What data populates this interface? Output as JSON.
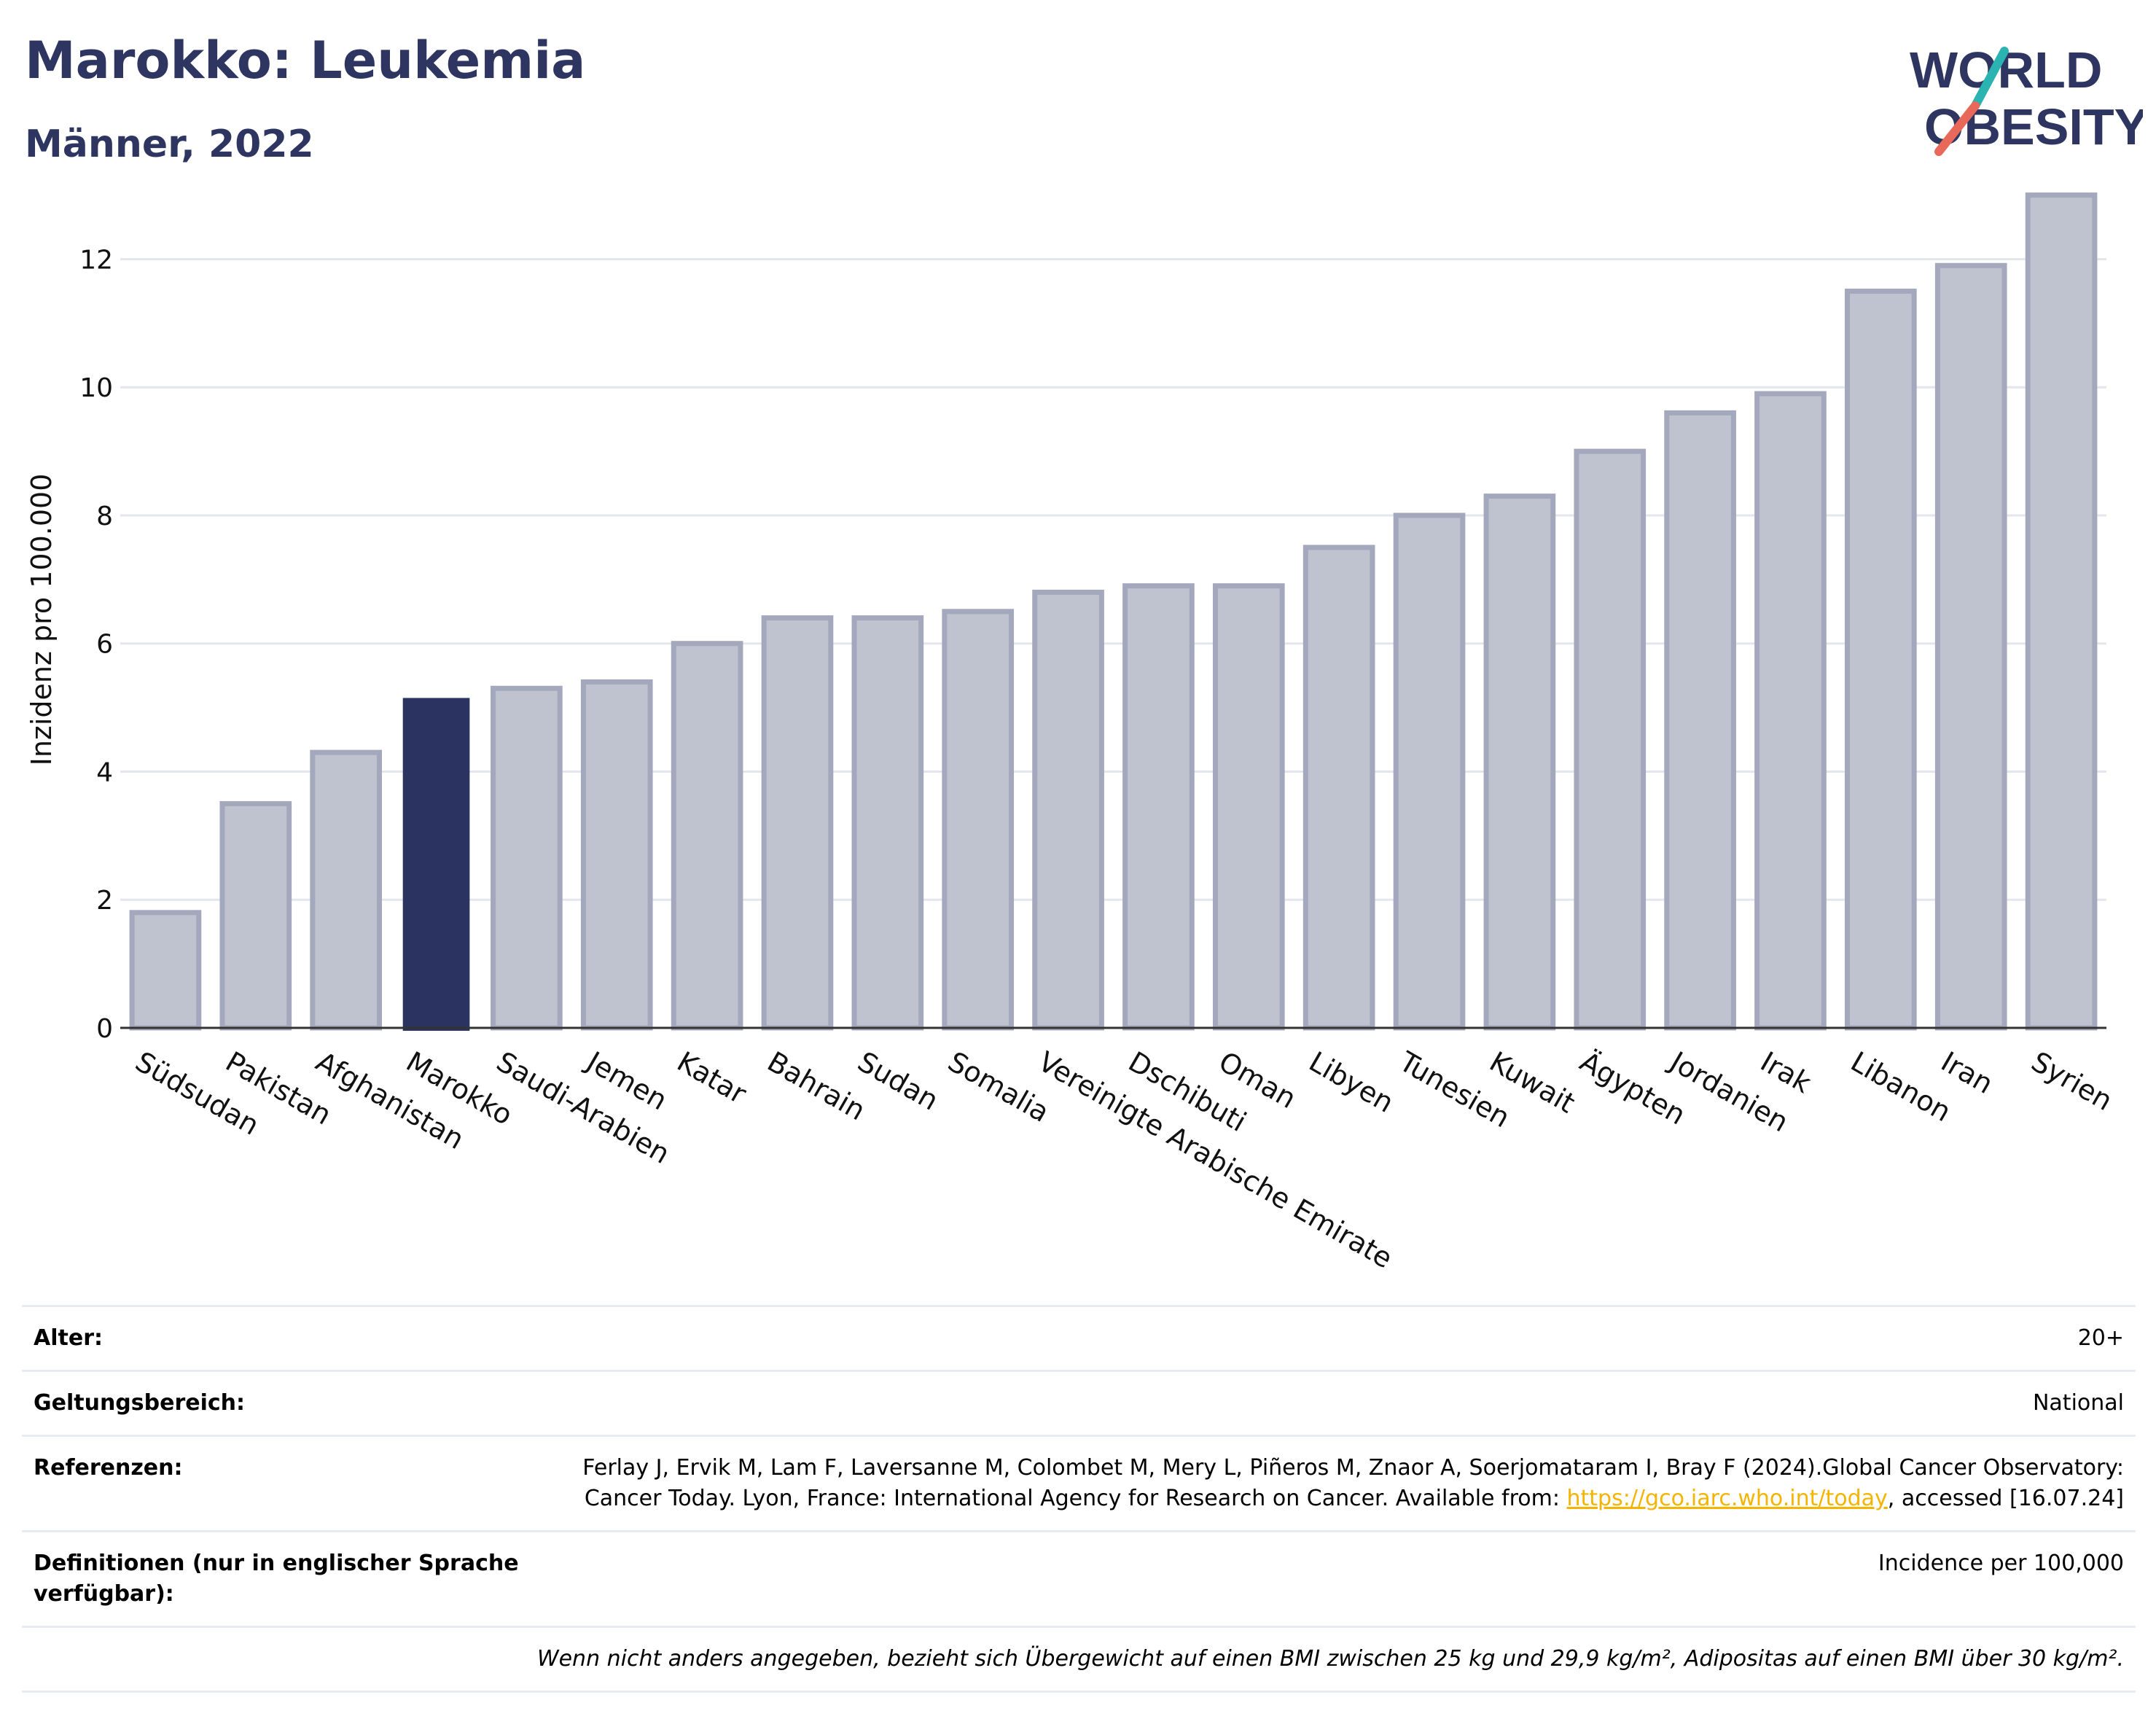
{
  "header": {
    "title": "Marokko: Leukemia",
    "subtitle": "Männer, 2022"
  },
  "logo": {
    "line1": "WORLD",
    "line2": "OBESITY",
    "colors": {
      "text": "#2d3560",
      "accent_teal": "#2ab3b1",
      "accent_coral": "#e8685a"
    }
  },
  "colors": {
    "bar_default": "#bfc2cf",
    "bar_default_stroke": "#a4a8bd",
    "bar_highlight": "#2b3461",
    "grid": "#e4e6ee",
    "axis": "#333333"
  },
  "chart_data": {
    "type": "bar",
    "title": "Marokko: Leukemia",
    "subtitle": "Männer, 2022",
    "xlabel": "",
    "ylabel": "Inzidenz pro 100.000",
    "ylim": [
      0,
      13.2
    ],
    "yticks": [
      0,
      2,
      4,
      6,
      8,
      10,
      12
    ],
    "grid": true,
    "highlight": "Marokko",
    "categories": [
      "Südsudan",
      "Pakistan",
      "Afghanistan",
      "Marokko",
      "Saudi-Arabien",
      "Jemen",
      "Katar",
      "Bahrain",
      "Sudan",
      "Somalia",
      "Vereinigte Arabische Emirate",
      "Dschibuti",
      "Oman",
      "Libyen",
      "Tunesien",
      "Kuwait",
      "Ägypten",
      "Jordanien",
      "Irak",
      "Libanon",
      "Iran",
      "Syrien"
    ],
    "values": [
      1.8,
      3.5,
      4.3,
      5.15,
      5.3,
      5.4,
      6.0,
      6.4,
      6.4,
      6.5,
      6.8,
      6.9,
      6.9,
      7.5,
      8.0,
      8.3,
      9.0,
      9.6,
      9.9,
      11.5,
      11.9,
      13.0
    ]
  },
  "meta": {
    "rows": [
      {
        "label": "Alter:",
        "value": "20+"
      },
      {
        "label": "Geltungsbereich:",
        "value": "National"
      },
      {
        "label": "Referenzen:",
        "value_pre": "Ferlay J, Ervik M, Lam F, Laversanne M, Colombet M, Mery L, Piñeros M, Znaor A, Soerjomataram I, Bray F (2024).Global Cancer Observatory: Cancer Today. Lyon, France: International Agency for Research on Cancer. Available from: ",
        "link": "https://gco.iarc.who.int/today",
        "value_post": ", accessed [16.07.24]"
      },
      {
        "label": "Definitionen (nur in englischer Sprache verfügbar):",
        "value": "Incidence per 100,000"
      }
    ],
    "note": "Wenn nicht anders angegeben, bezieht sich Übergewicht auf einen BMI zwischen 25 kg und 29,9 kg/m², Adipositas auf einen BMI über 30 kg/m²."
  }
}
